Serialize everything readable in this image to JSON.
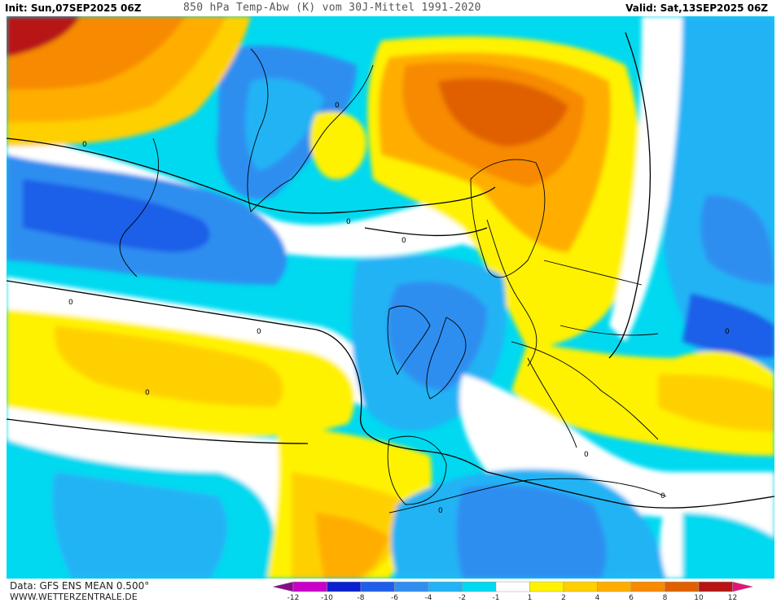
{
  "header": {
    "init": "Init: Sun,07SEP2025 06Z",
    "title": "850 hPa Temp-Abw (K) vom 30J-Mittel 1991-2020",
    "valid": "Valid: Sat,13SEP2025 06Z"
  },
  "footer": {
    "source": "Data: GFS ENS MEAN 0.500°",
    "site": "WWW.WETTERZENTRALE.DE"
  },
  "map": {
    "contour_labels": [
      "0",
      "0",
      "0",
      "0",
      "0",
      "0",
      "0",
      "0",
      "0",
      "0",
      "0"
    ]
  },
  "legend": {
    "colors": [
      "#8a0a8a",
      "#c800c8",
      "#0a1fd0",
      "#1f5ee8",
      "#2f8ef0",
      "#20b3f5",
      "#00d9f0",
      "#ffffff",
      "#fff200",
      "#ffd000",
      "#ffae00",
      "#f78a00",
      "#e06000",
      "#b81414",
      "#e6127a"
    ],
    "ticks": [
      "-12",
      "-10",
      "-8",
      "-6",
      "-4",
      "-2",
      "-1",
      "1",
      "2",
      "4",
      "6",
      "8",
      "10",
      "12"
    ]
  }
}
